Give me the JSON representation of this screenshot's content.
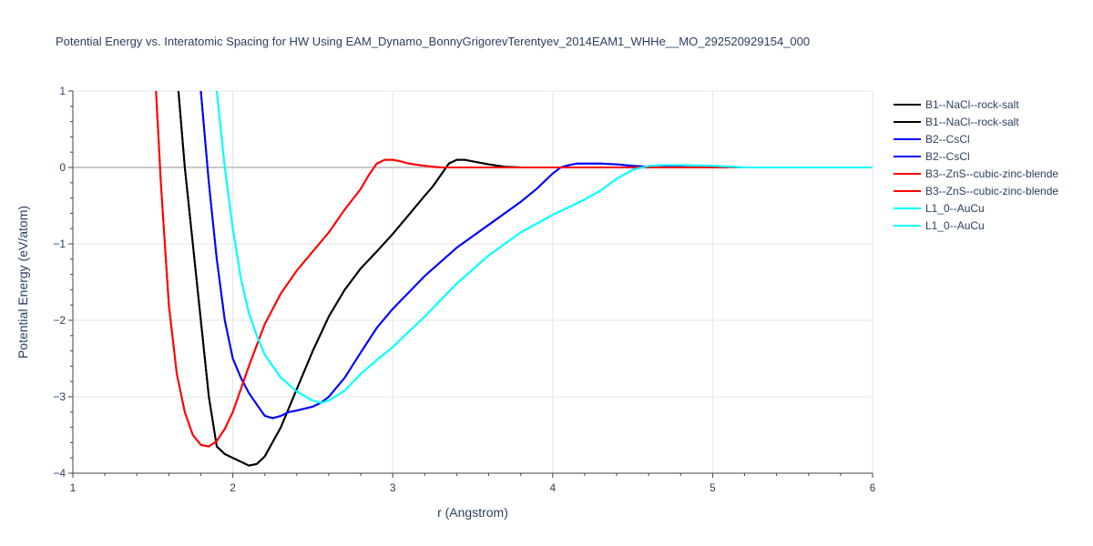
{
  "chart_data": {
    "type": "line",
    "title": "Potential Energy vs. Interatomic Spacing for HW Using EAM_Dynamo_BonnyGrigorevTerentyev_2014EAM1_WHHe__MO_292520929154_000",
    "xlabel": "r (Angstrom)",
    "ylabel": "Potential Energy (eV/atom)",
    "xlim": [
      1,
      6
    ],
    "ylim": [
      -4,
      1
    ],
    "xticks": [
      1,
      2,
      3,
      4,
      5,
      6
    ],
    "yticks": [
      1,
      0,
      -1,
      -2,
      -3,
      -4
    ],
    "grid": true,
    "legend_position": "top-right",
    "series": [
      {
        "name": "B1--NaCl--rock-salt",
        "color": "#000000",
        "x": [
          1.66,
          1.7,
          1.75,
          1.8,
          1.85,
          1.9,
          1.95,
          2.0,
          2.05,
          2.1,
          2.15,
          2.2,
          2.3,
          2.4,
          2.5,
          2.6,
          2.7,
          2.8,
          2.9,
          3.0,
          3.1,
          3.2,
          3.25,
          3.3,
          3.35,
          3.4,
          3.45,
          3.5,
          3.6,
          3.7,
          3.8,
          4.0,
          6.0
        ],
        "y": [
          1.0,
          0.0,
          -1.0,
          -2.0,
          -3.0,
          -3.65,
          -3.75,
          -3.8,
          -3.85,
          -3.9,
          -3.88,
          -3.78,
          -3.4,
          -2.9,
          -2.4,
          -1.95,
          -1.6,
          -1.32,
          -1.1,
          -0.87,
          -0.62,
          -0.37,
          -0.25,
          -0.1,
          0.05,
          0.1,
          0.1,
          0.08,
          0.04,
          0.01,
          0.0,
          0.0,
          0.0
        ]
      },
      {
        "name": "B1--NaCl--rock-salt",
        "color": "#000000",
        "x": [
          1.66,
          1.7,
          1.75,
          1.8,
          1.85,
          1.9,
          1.95,
          2.0,
          2.05,
          2.1,
          2.15,
          2.2,
          2.3,
          2.4,
          2.5,
          2.6,
          2.7,
          2.8,
          2.9,
          3.0,
          3.1,
          3.2,
          3.25,
          3.3,
          3.35,
          3.4,
          3.45,
          3.5,
          3.6,
          3.7,
          3.8,
          4.0,
          6.0
        ],
        "y": [
          1.0,
          0.0,
          -1.0,
          -2.0,
          -3.0,
          -3.65,
          -3.75,
          -3.8,
          -3.85,
          -3.9,
          -3.88,
          -3.78,
          -3.4,
          -2.9,
          -2.4,
          -1.95,
          -1.6,
          -1.32,
          -1.1,
          -0.87,
          -0.62,
          -0.37,
          -0.25,
          -0.1,
          0.05,
          0.1,
          0.1,
          0.08,
          0.04,
          0.01,
          0.0,
          0.0,
          0.0
        ]
      },
      {
        "name": "B2--CsCl",
        "color": "#0000ff",
        "x": [
          1.8,
          1.85,
          1.9,
          1.95,
          2.0,
          2.05,
          2.1,
          2.15,
          2.2,
          2.25,
          2.3,
          2.35,
          2.4,
          2.5,
          2.55,
          2.6,
          2.7,
          2.8,
          2.9,
          3.0,
          3.2,
          3.4,
          3.6,
          3.8,
          3.9,
          4.0,
          4.05,
          4.1,
          4.15,
          4.2,
          4.3,
          4.4,
          4.5,
          4.6,
          5.0,
          6.0
        ],
        "y": [
          1.0,
          -0.2,
          -1.2,
          -2.0,
          -2.5,
          -2.75,
          -2.95,
          -3.1,
          -3.25,
          -3.28,
          -3.25,
          -3.2,
          -3.18,
          -3.13,
          -3.08,
          -3.0,
          -2.75,
          -2.42,
          -2.1,
          -1.85,
          -1.42,
          -1.05,
          -0.75,
          -0.45,
          -0.28,
          -0.08,
          0.0,
          0.03,
          0.05,
          0.05,
          0.05,
          0.04,
          0.02,
          0.01,
          0.0,
          0.0
        ]
      },
      {
        "name": "B2--CsCl",
        "color": "#0000ff",
        "x": [
          1.8,
          1.85,
          1.9,
          1.95,
          2.0,
          2.05,
          2.1,
          2.15,
          2.2,
          2.25,
          2.3,
          2.35,
          2.4,
          2.5,
          2.55,
          2.6,
          2.7,
          2.8,
          2.9,
          3.0,
          3.2,
          3.4,
          3.6,
          3.8,
          3.9,
          4.0,
          4.05,
          4.1,
          4.15,
          4.2,
          4.3,
          4.4,
          4.5,
          4.6,
          5.0,
          6.0
        ],
        "y": [
          1.0,
          -0.2,
          -1.2,
          -2.0,
          -2.5,
          -2.75,
          -2.95,
          -3.1,
          -3.25,
          -3.28,
          -3.25,
          -3.2,
          -3.18,
          -3.13,
          -3.08,
          -3.0,
          -2.75,
          -2.42,
          -2.1,
          -1.85,
          -1.42,
          -1.05,
          -0.75,
          -0.45,
          -0.28,
          -0.08,
          0.0,
          0.03,
          0.05,
          0.05,
          0.05,
          0.04,
          0.02,
          0.01,
          0.0,
          0.0
        ]
      },
      {
        "name": "B3--ZnS--cubic-zinc-blende",
        "color": "#ff0000",
        "x": [
          1.52,
          1.55,
          1.6,
          1.65,
          1.7,
          1.75,
          1.8,
          1.85,
          1.9,
          1.95,
          2.0,
          2.1,
          2.2,
          2.3,
          2.4,
          2.5,
          2.6,
          2.7,
          2.8,
          2.85,
          2.9,
          2.95,
          3.0,
          3.05,
          3.1,
          3.2,
          3.3,
          3.5,
          6.0
        ],
        "y": [
          1.0,
          -0.2,
          -1.8,
          -2.7,
          -3.2,
          -3.5,
          -3.63,
          -3.65,
          -3.58,
          -3.42,
          -3.2,
          -2.6,
          -2.05,
          -1.65,
          -1.35,
          -1.1,
          -0.85,
          -0.55,
          -0.28,
          -0.1,
          0.05,
          0.1,
          0.1,
          0.08,
          0.05,
          0.02,
          0.0,
          0.0,
          0.0
        ]
      },
      {
        "name": "B3--ZnS--cubic-zinc-blende",
        "color": "#ff0000",
        "x": [
          1.52,
          1.55,
          1.6,
          1.65,
          1.7,
          1.75,
          1.8,
          1.85,
          1.9,
          1.95,
          2.0,
          2.1,
          2.2,
          2.3,
          2.4,
          2.5,
          2.6,
          2.7,
          2.8,
          2.85,
          2.9,
          2.95,
          3.0,
          3.05,
          3.1,
          3.2,
          3.3,
          3.5,
          6.0
        ],
        "y": [
          1.0,
          -0.2,
          -1.8,
          -2.7,
          -3.2,
          -3.5,
          -3.63,
          -3.65,
          -3.58,
          -3.42,
          -3.2,
          -2.6,
          -2.05,
          -1.65,
          -1.35,
          -1.1,
          -0.85,
          -0.55,
          -0.28,
          -0.1,
          0.05,
          0.1,
          0.1,
          0.08,
          0.05,
          0.02,
          0.0,
          0.0,
          0.0
        ]
      },
      {
        "name": "L1_0--AuCu",
        "color": "#00ffff",
        "x": [
          1.9,
          1.95,
          2.0,
          2.05,
          2.1,
          2.15,
          2.2,
          2.3,
          2.4,
          2.5,
          2.55,
          2.6,
          2.7,
          2.8,
          2.9,
          3.0,
          3.2,
          3.4,
          3.6,
          3.8,
          4.0,
          4.2,
          4.3,
          4.4,
          4.5,
          4.6,
          4.7,
          4.8,
          5.0,
          5.2,
          6.0
        ],
        "y": [
          1.0,
          0.0,
          -0.8,
          -1.45,
          -1.9,
          -2.2,
          -2.45,
          -2.75,
          -2.93,
          -3.05,
          -3.08,
          -3.05,
          -2.92,
          -2.7,
          -2.52,
          -2.35,
          -1.95,
          -1.52,
          -1.15,
          -0.85,
          -0.62,
          -0.42,
          -0.3,
          -0.15,
          -0.03,
          0.02,
          0.03,
          0.03,
          0.02,
          0.0,
          0.0
        ]
      },
      {
        "name": "L1_0--AuCu",
        "color": "#00ffff",
        "x": [
          1.9,
          1.95,
          2.0,
          2.05,
          2.1,
          2.15,
          2.2,
          2.3,
          2.4,
          2.5,
          2.55,
          2.6,
          2.7,
          2.8,
          2.9,
          3.0,
          3.2,
          3.4,
          3.6,
          3.8,
          4.0,
          4.2,
          4.3,
          4.4,
          4.5,
          4.6,
          4.7,
          4.8,
          5.0,
          5.2,
          6.0
        ],
        "y": [
          1.0,
          0.0,
          -0.8,
          -1.45,
          -1.9,
          -2.2,
          -2.45,
          -2.75,
          -2.93,
          -3.05,
          -3.08,
          -3.05,
          -2.92,
          -2.7,
          -2.52,
          -2.35,
          -1.95,
          -1.52,
          -1.15,
          -0.85,
          -0.62,
          -0.42,
          -0.3,
          -0.15,
          -0.03,
          0.02,
          0.03,
          0.03,
          0.02,
          0.0,
          0.0
        ]
      }
    ]
  }
}
